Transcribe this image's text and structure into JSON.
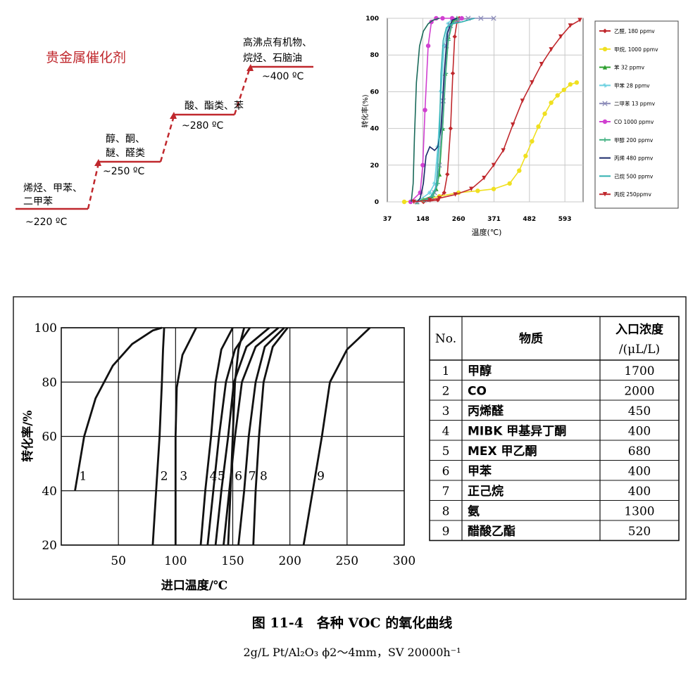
{
  "steps_panel": {
    "title": "贵金属催化剂",
    "steps": [
      {
        "label_lines": [
          "烯烃、甲苯、",
          "二甲苯"
        ],
        "temp": "~220 ºC"
      },
      {
        "label_lines": [
          "醇、酮、",
          "醚、醛类"
        ],
        "temp": "~250 ºC"
      },
      {
        "label_lines": [
          "酸、酯类、苯"
        ],
        "temp": "~280 ºC"
      },
      {
        "label_lines": [
          "高沸点有机物、",
          "烷烃、石脑油"
        ],
        "temp": "~400 ºC"
      }
    ],
    "colors": {
      "title": "#c0282d",
      "line": "#c0282d"
    }
  },
  "chart_data": [
    {
      "type": "line",
      "ylabel": "转化率(%)",
      "xlabel": "温度(℃)",
      "x_ticks": [
        "37",
        "148",
        "260",
        "371",
        "482",
        "593"
      ],
      "y_ticks": [
        "0",
        "20",
        "40",
        "60",
        "80",
        "100"
      ],
      "xlim": [
        37,
        650
      ],
      "ylim": [
        0,
        100
      ],
      "grid": true,
      "legend_position": "right",
      "series": [
        {
          "name": "乙醛, 180 ppmv",
          "color": "#c0282d",
          "marker": "diamond",
          "points": [
            [
              150,
              0
            ],
            [
              195,
              1
            ],
            [
              215,
              5
            ],
            [
              225,
              15
            ],
            [
              235,
              40
            ],
            [
              242,
              70
            ],
            [
              248,
              90
            ],
            [
              255,
              98
            ],
            [
              262,
              100
            ]
          ]
        },
        {
          "name": "甲烷, 1000 ppmv",
          "color": "#f0e020",
          "marker": "circle",
          "points": [
            [
              90,
              0
            ],
            [
              150,
              1
            ],
            [
              200,
              3
            ],
            [
              260,
              5
            ],
            [
              320,
              6
            ],
            [
              370,
              7
            ],
            [
              420,
              10
            ],
            [
              450,
              17
            ],
            [
              470,
              25
            ],
            [
              490,
              33
            ],
            [
              510,
              41
            ],
            [
              530,
              48
            ],
            [
              550,
              54
            ],
            [
              570,
              58
            ],
            [
              590,
              61
            ],
            [
              610,
              64
            ],
            [
              630,
              65
            ]
          ]
        },
        {
          "name": "苯 32 ppmv",
          "color": "#2ea030",
          "marker": "triangle",
          "points": [
            [
              130,
              0
            ],
            [
              175,
              3
            ],
            [
              190,
              7
            ],
            [
              200,
              15
            ],
            [
              210,
              40
            ],
            [
              218,
              70
            ],
            [
              228,
              90
            ],
            [
              240,
              98
            ],
            [
              255,
              100
            ]
          ]
        },
        {
          "name": "甲苯 28 ppmv",
          "color": "#6ad0e0",
          "marker": "star",
          "points": [
            [
              130,
              0
            ],
            [
              170,
              5
            ],
            [
              185,
              10
            ],
            [
              195,
              30
            ],
            [
              205,
              60
            ],
            [
              215,
              85
            ],
            [
              228,
              97
            ],
            [
              240,
              100
            ]
          ]
        },
        {
          "name": "二甲苯 13 ppmv",
          "color": "#8a8ab8",
          "marker": "x",
          "points": [
            [
              130,
              0
            ],
            [
              165,
              1
            ],
            [
              185,
              5
            ],
            [
              200,
              20
            ],
            [
              212,
              55
            ],
            [
              222,
              85
            ],
            [
              235,
              96
            ],
            [
              260,
              99
            ],
            [
              290,
              100
            ],
            [
              330,
              100
            ],
            [
              370,
              100
            ]
          ]
        },
        {
          "name": "CO 1000 ppmv",
          "color": "#d040d0",
          "marker": "circle",
          "points": [
            [
              110,
              0
            ],
            [
              140,
              5
            ],
            [
              148,
              20
            ],
            [
              155,
              50
            ],
            [
              165,
              85
            ],
            [
              175,
              98
            ],
            [
              190,
              100
            ],
            [
              210,
              100
            ],
            [
              240,
              100
            ],
            [
              270,
              100
            ]
          ]
        },
        {
          "name": "甲醇 200 ppmv",
          "color": "#40b080",
          "marker": "plus",
          "points": [
            [
              150,
              1
            ],
            [
              180,
              3
            ],
            [
              195,
              10
            ],
            [
              210,
              40
            ],
            [
              220,
              70
            ],
            [
              228,
              88
            ],
            [
              240,
              97
            ],
            [
              255,
              100
            ]
          ]
        },
        {
          "name": "丙烯 480 ppmv",
          "color": "#1a2a6a",
          "marker": "none",
          "points": [
            [
              130,
              0
            ],
            [
              140,
              2
            ],
            [
              150,
              10
            ],
            [
              158,
              25
            ],
            [
              170,
              30
            ],
            [
              185,
              28
            ],
            [
              195,
              30
            ],
            [
              205,
              40
            ],
            [
              215,
              70
            ],
            [
              225,
              92
            ],
            [
              240,
              99
            ],
            [
              255,
              100
            ]
          ]
        },
        {
          "name": "己烷 500 ppmv",
          "color": "#30b0b0",
          "marker": "none",
          "points": [
            [
              150,
              0
            ],
            [
              170,
              2
            ],
            [
              190,
              8
            ],
            [
              200,
              35
            ],
            [
              205,
              70
            ],
            [
              212,
              88
            ],
            [
              222,
              95
            ],
            [
              240,
              97
            ],
            [
              270,
              98
            ],
            [
              310,
              100
            ]
          ]
        },
        {
          "name": "丙烷 250ppmv",
          "color": "#c0282d",
          "marker": "triangle-down",
          "points": [
            [
              120,
              0
            ],
            [
              170,
              1
            ],
            [
              200,
              2
            ],
            [
              250,
              4
            ],
            [
              300,
              7
            ],
            [
              340,
              13
            ],
            [
              370,
              20
            ],
            [
              400,
              28
            ],
            [
              430,
              42
            ],
            [
              460,
              55
            ],
            [
              490,
              65
            ],
            [
              520,
              75
            ],
            [
              550,
              83
            ],
            [
              580,
              90
            ],
            [
              610,
              96
            ],
            [
              640,
              99
            ]
          ]
        },
        {
          "name": "",
          "color": "#1a6a5a",
          "marker": "none",
          "points": [
            [
              112,
              0
            ],
            [
              118,
              10
            ],
            [
              122,
              35
            ],
            [
              128,
              65
            ],
            [
              138,
              85
            ],
            [
              150,
              93
            ],
            [
              165,
              97
            ],
            [
              180,
              99
            ],
            [
              200,
              100
            ]
          ]
        }
      ]
    },
    {
      "type": "line",
      "ylabel": "转化率/%",
      "xlabel": "进口温度/℃",
      "x_ticks": [
        "50",
        "100",
        "150",
        "200",
        "250",
        "300"
      ],
      "y_ticks": [
        "20",
        "40",
        "60",
        "80",
        "100"
      ],
      "xlim": [
        0,
        300
      ],
      "ylim": [
        20,
        100
      ],
      "grid": true,
      "series": [
        {
          "name": "1",
          "color": "#111111",
          "points": [
            [
              12,
              40
            ],
            [
              20,
              60
            ],
            [
              30,
              74
            ],
            [
              45,
              86
            ],
            [
              62,
              94
            ],
            [
              80,
              99
            ],
            [
              88,
              100
            ]
          ]
        },
        {
          "name": "2",
          "color": "#111111",
          "points": [
            [
              80,
              20
            ],
            [
              83,
              40
            ],
            [
              86,
              60
            ],
            [
              88,
              80
            ],
            [
              89,
              92
            ],
            [
              90,
              100
            ]
          ]
        },
        {
          "name": "3",
          "color": "#111111",
          "points": [
            [
              100,
              20
            ],
            [
              100,
              40
            ],
            [
              100,
              60
            ],
            [
              101,
              78
            ],
            [
              106,
              90
            ],
            [
              118,
              100
            ]
          ]
        },
        {
          "name": "4",
          "color": "#111111",
          "points": [
            [
              122,
              20
            ],
            [
              126,
              40
            ],
            [
              131,
              60
            ],
            [
              135,
              80
            ],
            [
              140,
              92
            ],
            [
              150,
              100
            ]
          ]
        },
        {
          "name": "5",
          "color": "#111111",
          "points": [
            [
              128,
              20
            ],
            [
              133,
              40
            ],
            [
              138,
              60
            ],
            [
              144,
              80
            ],
            [
              152,
              92
            ],
            [
              165,
              100
            ]
          ]
        },
        {
          "name": "6",
          "color": "#111111",
          "points": [
            [
              146,
              20
            ],
            [
              148,
              40
            ],
            [
              150,
              60
            ],
            [
              152,
              80
            ],
            [
              155,
              92
            ],
            [
              160,
              100
            ]
          ]
        },
        {
          "name": "7",
          "color": "#111111",
          "points": [
            [
              155,
              20
            ],
            [
              160,
              40
            ],
            [
              164,
              60
            ],
            [
              170,
              80
            ],
            [
              178,
              93
            ],
            [
              195,
              100
            ]
          ]
        },
        {
          "name": "8",
          "color": "#111111",
          "points": [
            [
              168,
              20
            ],
            [
              170,
              40
            ],
            [
              173,
              60
            ],
            [
              177,
              80
            ],
            [
              185,
              93
            ],
            [
              198,
              100
            ]
          ]
        },
        {
          "name": "9",
          "color": "#111111",
          "points": [
            [
              212,
              20
            ],
            [
              220,
              40
            ],
            [
              228,
              60
            ],
            [
              235,
              80
            ],
            [
              250,
              92
            ],
            [
              270,
              100
            ]
          ]
        },
        {
          "name": "",
          "color": "#111111",
          "points": [
            [
              135,
              20
            ],
            [
              140,
              40
            ],
            [
              146,
              60
            ],
            [
              151,
              80
            ],
            [
              162,
              93
            ],
            [
              182,
              100
            ]
          ]
        },
        {
          "name": "",
          "color": "#111111",
          "points": [
            [
              142,
              20
            ],
            [
              147,
              40
            ],
            [
              152,
              60
            ],
            [
              158,
              80
            ],
            [
              170,
              93
            ],
            [
              190,
              100
            ]
          ]
        }
      ]
    }
  ],
  "bottom_table": {
    "headers": [
      "No.",
      "物质",
      "入口浓度",
      "/(μL/L)"
    ],
    "rows": [
      [
        "1",
        "甲醇",
        "1700"
      ],
      [
        "2",
        "CO",
        "2000"
      ],
      [
        "3",
        "丙烯醛",
        "450"
      ],
      [
        "4",
        "MIBK 甲基异丁酮",
        "400"
      ],
      [
        "5",
        "MEX 甲乙酮",
        "680"
      ],
      [
        "6",
        "甲苯",
        "400"
      ],
      [
        "7",
        "正己烷",
        "400"
      ],
      [
        "8",
        "氨",
        "1300"
      ],
      [
        "9",
        "醋酸乙酯",
        "520"
      ]
    ]
  },
  "caption": {
    "title": "图 11-4　各种 VOC 的氧化曲线",
    "subtitle": "2g/L Pt/Al₂O₃ ϕ2～4mm，SV 20000h⁻¹"
  }
}
